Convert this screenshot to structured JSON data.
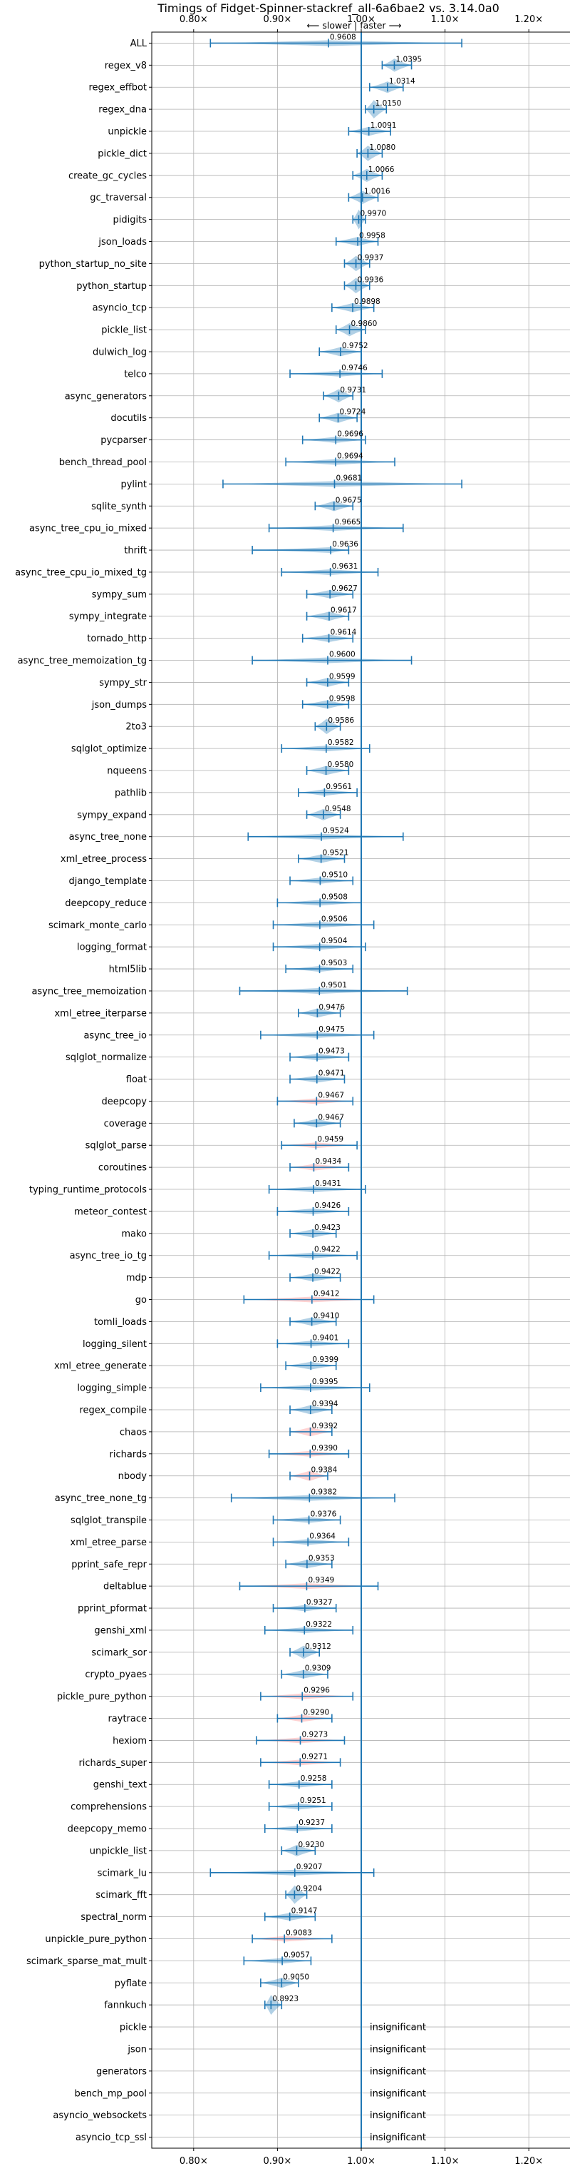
{
  "chart_data": {
    "type": "violin",
    "title": "Timings of Fidget-Spinner-stackref_all-6a6bae2 vs. 3.14.0a0",
    "direction_label": "⟵ slower | faster ⟶",
    "xlim": [
      0.75,
      1.25
    ],
    "xticks": [
      0.8,
      0.9,
      1.0,
      1.1,
      1.2
    ],
    "xtick_labels": [
      "0.80×",
      "0.90×",
      "1.00×",
      "1.10×",
      "1.20×"
    ],
    "reference_line": 1.0,
    "colors": {
      "faster": "#1f77b4",
      "slower": "#ff7f7f",
      "whisker": "#1f77b4",
      "grid": "#b0b0b0"
    },
    "insignificant_text": "insignificant",
    "benchmarks": [
      {
        "name": "ALL",
        "value": 0.9608,
        "label": "0.9608",
        "min": 0.82,
        "max": 1.12,
        "color": "faster"
      },
      {
        "name": "regex_v8",
        "value": 1.0395,
        "label": "1.0395",
        "min": 1.025,
        "max": 1.06,
        "color": "faster"
      },
      {
        "name": "regex_effbot",
        "value": 1.0314,
        "label": "1.0314",
        "min": 1.01,
        "max": 1.05,
        "color": "faster"
      },
      {
        "name": "regex_dna",
        "value": 1.015,
        "label": "1.0150",
        "min": 1.005,
        "max": 1.03,
        "color": "faster"
      },
      {
        "name": "unpickle",
        "value": 1.0091,
        "label": "1.0091",
        "min": 0.985,
        "max": 1.035,
        "color": "faster"
      },
      {
        "name": "pickle_dict",
        "value": 1.008,
        "label": "1.0080",
        "min": 0.995,
        "max": 1.025,
        "color": "faster"
      },
      {
        "name": "create_gc_cycles",
        "value": 1.0066,
        "label": "1.0066",
        "min": 0.99,
        "max": 1.025,
        "color": "faster"
      },
      {
        "name": "gc_traversal",
        "value": 1.0016,
        "label": "1.0016",
        "min": 0.985,
        "max": 1.02,
        "color": "faster"
      },
      {
        "name": "pidigits",
        "value": 0.997,
        "label": "0.9970",
        "min": 0.99,
        "max": 1.005,
        "color": "faster"
      },
      {
        "name": "json_loads",
        "value": 0.9958,
        "label": "0.9958",
        "min": 0.97,
        "max": 1.02,
        "color": "faster"
      },
      {
        "name": "python_startup_no_site",
        "value": 0.9937,
        "label": "0.9937",
        "min": 0.98,
        "max": 1.01,
        "color": "faster"
      },
      {
        "name": "python_startup",
        "value": 0.9936,
        "label": "0.9936",
        "min": 0.98,
        "max": 1.01,
        "color": "faster"
      },
      {
        "name": "asyncio_tcp",
        "value": 0.9898,
        "label": "0.9898",
        "min": 0.965,
        "max": 1.015,
        "color": "faster"
      },
      {
        "name": "pickle_list",
        "value": 0.986,
        "label": "0.9860",
        "min": 0.97,
        "max": 1.005,
        "color": "faster"
      },
      {
        "name": "dulwich_log",
        "value": 0.9752,
        "label": "0.9752",
        "min": 0.95,
        "max": 1.0,
        "color": "faster"
      },
      {
        "name": "telco",
        "value": 0.9746,
        "label": "0.9746",
        "min": 0.915,
        "max": 1.025,
        "color": "faster"
      },
      {
        "name": "async_generators",
        "value": 0.9731,
        "label": "0.9731",
        "min": 0.955,
        "max": 0.99,
        "color": "faster"
      },
      {
        "name": "docutils",
        "value": 0.9724,
        "label": "0.9724",
        "min": 0.95,
        "max": 0.995,
        "color": "faster"
      },
      {
        "name": "pycparser",
        "value": 0.9696,
        "label": "0.9696",
        "min": 0.93,
        "max": 1.005,
        "color": "faster"
      },
      {
        "name": "bench_thread_pool",
        "value": 0.9694,
        "label": "0.9694",
        "min": 0.91,
        "max": 1.04,
        "color": "faster"
      },
      {
        "name": "pylint",
        "value": 0.9681,
        "label": "0.9681",
        "min": 0.835,
        "max": 1.12,
        "color": "faster"
      },
      {
        "name": "sqlite_synth",
        "value": 0.9675,
        "label": "0.9675",
        "min": 0.945,
        "max": 0.99,
        "color": "faster"
      },
      {
        "name": "async_tree_cpu_io_mixed",
        "value": 0.9665,
        "label": "0.9665",
        "min": 0.89,
        "max": 1.05,
        "color": "faster"
      },
      {
        "name": "thrift",
        "value": 0.9636,
        "label": "0.9636",
        "min": 0.87,
        "max": 0.985,
        "color": "faster"
      },
      {
        "name": "async_tree_cpu_io_mixed_tg",
        "value": 0.9631,
        "label": "0.9631",
        "min": 0.905,
        "max": 1.02,
        "color": "faster"
      },
      {
        "name": "sympy_sum",
        "value": 0.9627,
        "label": "0.9627",
        "min": 0.935,
        "max": 0.99,
        "color": "faster"
      },
      {
        "name": "sympy_integrate",
        "value": 0.9617,
        "label": "0.9617",
        "min": 0.935,
        "max": 0.985,
        "color": "faster"
      },
      {
        "name": "tornado_http",
        "value": 0.9614,
        "label": "0.9614",
        "min": 0.93,
        "max": 0.99,
        "color": "faster"
      },
      {
        "name": "async_tree_memoization_tg",
        "value": 0.96,
        "label": "0.9600",
        "min": 0.87,
        "max": 1.06,
        "color": "faster"
      },
      {
        "name": "sympy_str",
        "value": 0.9599,
        "label": "0.9599",
        "min": 0.935,
        "max": 0.985,
        "color": "faster"
      },
      {
        "name": "json_dumps",
        "value": 0.9598,
        "label": "0.9598",
        "min": 0.93,
        "max": 0.985,
        "color": "faster"
      },
      {
        "name": "2to3",
        "value": 0.9586,
        "label": "0.9586",
        "min": 0.945,
        "max": 0.975,
        "color": "faster"
      },
      {
        "name": "sqlglot_optimize",
        "value": 0.9582,
        "label": "0.9582",
        "min": 0.905,
        "max": 1.01,
        "color": "faster"
      },
      {
        "name": "nqueens",
        "value": 0.958,
        "label": "0.9580",
        "min": 0.935,
        "max": 0.985,
        "color": "faster"
      },
      {
        "name": "pathlib",
        "value": 0.9561,
        "label": "0.9561",
        "min": 0.925,
        "max": 0.995,
        "color": "faster"
      },
      {
        "name": "sympy_expand",
        "value": 0.9548,
        "label": "0.9548",
        "min": 0.935,
        "max": 0.975,
        "color": "faster"
      },
      {
        "name": "async_tree_none",
        "value": 0.9524,
        "label": "0.9524",
        "min": 0.865,
        "max": 1.05,
        "color": "faster"
      },
      {
        "name": "xml_etree_process",
        "value": 0.9521,
        "label": "0.9521",
        "min": 0.925,
        "max": 0.98,
        "color": "faster"
      },
      {
        "name": "django_template",
        "value": 0.951,
        "label": "0.9510",
        "min": 0.915,
        "max": 0.99,
        "color": "faster"
      },
      {
        "name": "deepcopy_reduce",
        "value": 0.9508,
        "label": "0.9508",
        "min": 0.9,
        "max": 1.0,
        "color": "faster"
      },
      {
        "name": "scimark_monte_carlo",
        "value": 0.9506,
        "label": "0.9506",
        "min": 0.895,
        "max": 1.015,
        "color": "faster"
      },
      {
        "name": "logging_format",
        "value": 0.9504,
        "label": "0.9504",
        "min": 0.895,
        "max": 1.005,
        "color": "faster"
      },
      {
        "name": "html5lib",
        "value": 0.9503,
        "label": "0.9503",
        "min": 0.91,
        "max": 0.99,
        "color": "faster"
      },
      {
        "name": "async_tree_memoization",
        "value": 0.9501,
        "label": "0.9501",
        "min": 0.855,
        "max": 1.055,
        "color": "faster"
      },
      {
        "name": "xml_etree_iterparse",
        "value": 0.9476,
        "label": "0.9476",
        "min": 0.925,
        "max": 0.975,
        "color": "faster"
      },
      {
        "name": "async_tree_io",
        "value": 0.9475,
        "label": "0.9475",
        "min": 0.88,
        "max": 1.015,
        "color": "faster"
      },
      {
        "name": "sqlglot_normalize",
        "value": 0.9473,
        "label": "0.9473",
        "min": 0.915,
        "max": 0.985,
        "color": "faster"
      },
      {
        "name": "float",
        "value": 0.9471,
        "label": "0.9471",
        "min": 0.915,
        "max": 0.98,
        "color": "faster"
      },
      {
        "name": "deepcopy",
        "value": 0.9467,
        "label": "0.9467",
        "min": 0.9,
        "max": 0.99,
        "color": "slower"
      },
      {
        "name": "coverage",
        "value": 0.9467,
        "label": "0.9467",
        "min": 0.92,
        "max": 0.975,
        "color": "faster"
      },
      {
        "name": "sqlglot_parse",
        "value": 0.9459,
        "label": "0.9459",
        "min": 0.905,
        "max": 0.995,
        "color": "slower"
      },
      {
        "name": "coroutines",
        "value": 0.9434,
        "label": "0.9434",
        "min": 0.915,
        "max": 0.985,
        "color": "slower"
      },
      {
        "name": "typing_runtime_protocols",
        "value": 0.9431,
        "label": "0.9431",
        "min": 0.89,
        "max": 1.005,
        "color": "faster"
      },
      {
        "name": "meteor_contest",
        "value": 0.9426,
        "label": "0.9426",
        "min": 0.9,
        "max": 0.985,
        "color": "faster"
      },
      {
        "name": "mako",
        "value": 0.9423,
        "label": "0.9423",
        "min": 0.915,
        "max": 0.97,
        "color": "faster"
      },
      {
        "name": "async_tree_io_tg",
        "value": 0.9422,
        "label": "0.9422",
        "min": 0.89,
        "max": 0.995,
        "color": "faster"
      },
      {
        "name": "mdp",
        "value": 0.9422,
        "label": "0.9422",
        "min": 0.915,
        "max": 0.975,
        "color": "faster"
      },
      {
        "name": "go",
        "value": 0.9412,
        "label": "0.9412",
        "min": 0.86,
        "max": 1.015,
        "color": "slower"
      },
      {
        "name": "tomli_loads",
        "value": 0.941,
        "label": "0.9410",
        "min": 0.915,
        "max": 0.97,
        "color": "faster"
      },
      {
        "name": "logging_silent",
        "value": 0.9401,
        "label": "0.9401",
        "min": 0.9,
        "max": 0.985,
        "color": "faster"
      },
      {
        "name": "xml_etree_generate",
        "value": 0.9399,
        "label": "0.9399",
        "min": 0.91,
        "max": 0.97,
        "color": "faster"
      },
      {
        "name": "logging_simple",
        "value": 0.9395,
        "label": "0.9395",
        "min": 0.88,
        "max": 1.01,
        "color": "faster"
      },
      {
        "name": "regex_compile",
        "value": 0.9394,
        "label": "0.9394",
        "min": 0.915,
        "max": 0.965,
        "color": "faster"
      },
      {
        "name": "chaos",
        "value": 0.9392,
        "label": "0.9392",
        "min": 0.915,
        "max": 0.965,
        "color": "slower"
      },
      {
        "name": "richards",
        "value": 0.939,
        "label": "0.9390",
        "min": 0.89,
        "max": 0.985,
        "color": "slower"
      },
      {
        "name": "nbody",
        "value": 0.9384,
        "label": "0.9384",
        "min": 0.915,
        "max": 0.96,
        "color": "slower"
      },
      {
        "name": "async_tree_none_tg",
        "value": 0.9382,
        "label": "0.9382",
        "min": 0.845,
        "max": 1.04,
        "color": "faster"
      },
      {
        "name": "sqlglot_transpile",
        "value": 0.9376,
        "label": "0.9376",
        "min": 0.895,
        "max": 0.975,
        "color": "faster"
      },
      {
        "name": "xml_etree_parse",
        "value": 0.9364,
        "label": "0.9364",
        "min": 0.895,
        "max": 0.985,
        "color": "faster"
      },
      {
        "name": "pprint_safe_repr",
        "value": 0.9353,
        "label": "0.9353",
        "min": 0.91,
        "max": 0.965,
        "color": "faster"
      },
      {
        "name": "deltablue",
        "value": 0.9349,
        "label": "0.9349",
        "min": 0.855,
        "max": 1.02,
        "color": "slower"
      },
      {
        "name": "pprint_pformat",
        "value": 0.9327,
        "label": "0.9327",
        "min": 0.895,
        "max": 0.97,
        "color": "faster"
      },
      {
        "name": "genshi_xml",
        "value": 0.9322,
        "label": "0.9322",
        "min": 0.885,
        "max": 0.99,
        "color": "faster"
      },
      {
        "name": "scimark_sor",
        "value": 0.9312,
        "label": "0.9312",
        "min": 0.915,
        "max": 0.95,
        "color": "faster"
      },
      {
        "name": "crypto_pyaes",
        "value": 0.9309,
        "label": "0.9309",
        "min": 0.905,
        "max": 0.96,
        "color": "faster"
      },
      {
        "name": "pickle_pure_python",
        "value": 0.9296,
        "label": "0.9296",
        "min": 0.88,
        "max": 0.99,
        "color": "slower"
      },
      {
        "name": "raytrace",
        "value": 0.929,
        "label": "0.9290",
        "min": 0.9,
        "max": 0.965,
        "color": "slower"
      },
      {
        "name": "hexiom",
        "value": 0.9273,
        "label": "0.9273",
        "min": 0.875,
        "max": 0.98,
        "color": "slower"
      },
      {
        "name": "richards_super",
        "value": 0.9271,
        "label": "0.9271",
        "min": 0.88,
        "max": 0.975,
        "color": "slower"
      },
      {
        "name": "genshi_text",
        "value": 0.9258,
        "label": "0.9258",
        "min": 0.89,
        "max": 0.965,
        "color": "faster"
      },
      {
        "name": "comprehensions",
        "value": 0.9251,
        "label": "0.9251",
        "min": 0.89,
        "max": 0.965,
        "color": "faster"
      },
      {
        "name": "deepcopy_memo",
        "value": 0.9237,
        "label": "0.9237",
        "min": 0.885,
        "max": 0.965,
        "color": "faster"
      },
      {
        "name": "unpickle_list",
        "value": 0.923,
        "label": "0.9230",
        "min": 0.905,
        "max": 0.945,
        "color": "faster"
      },
      {
        "name": "scimark_lu",
        "value": 0.9207,
        "label": "0.9207",
        "min": 0.82,
        "max": 1.015,
        "color": "faster"
      },
      {
        "name": "scimark_fft",
        "value": 0.9204,
        "label": "0.9204",
        "min": 0.91,
        "max": 0.935,
        "color": "faster"
      },
      {
        "name": "spectral_norm",
        "value": 0.9147,
        "label": "0.9147",
        "min": 0.885,
        "max": 0.945,
        "color": "faster"
      },
      {
        "name": "unpickle_pure_python",
        "value": 0.9083,
        "label": "0.9083",
        "min": 0.87,
        "max": 0.965,
        "color": "slower"
      },
      {
        "name": "scimark_sparse_mat_mult",
        "value": 0.9057,
        "label": "0.9057",
        "min": 0.86,
        "max": 0.94,
        "color": "faster"
      },
      {
        "name": "pyflate",
        "value": 0.905,
        "label": "0.9050",
        "min": 0.88,
        "max": 0.925,
        "color": "faster"
      },
      {
        "name": "fannkuch",
        "value": 0.8923,
        "label": "0.8923",
        "min": 0.885,
        "max": 0.905,
        "color": "faster"
      },
      {
        "name": "pickle",
        "value": null,
        "label": "insignificant",
        "min": null,
        "max": null,
        "color": "none"
      },
      {
        "name": "json",
        "value": null,
        "label": "insignificant",
        "min": null,
        "max": null,
        "color": "none"
      },
      {
        "name": "generators",
        "value": null,
        "label": "insignificant",
        "min": null,
        "max": null,
        "color": "none"
      },
      {
        "name": "bench_mp_pool",
        "value": null,
        "label": "insignificant",
        "min": null,
        "max": null,
        "color": "none"
      },
      {
        "name": "asyncio_websockets",
        "value": null,
        "label": "insignificant",
        "min": null,
        "max": null,
        "color": "none"
      },
      {
        "name": "asyncio_tcp_ssl",
        "value": null,
        "label": "insignificant",
        "min": null,
        "max": null,
        "color": "none"
      }
    ]
  }
}
